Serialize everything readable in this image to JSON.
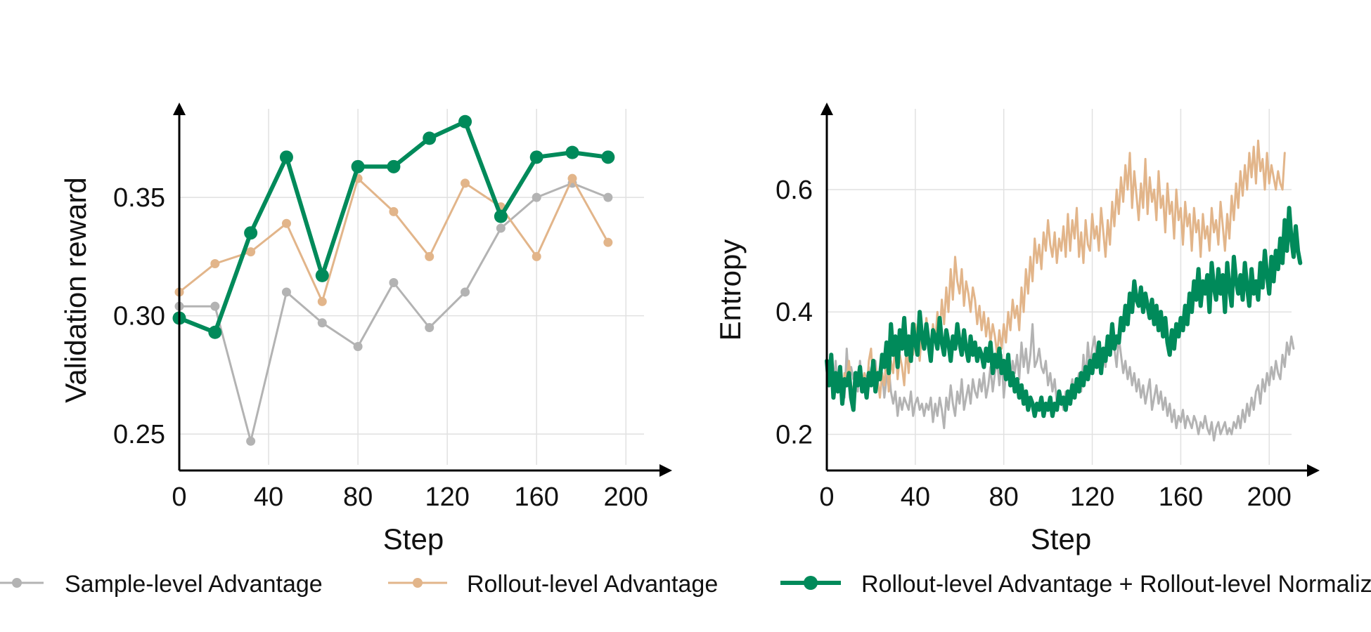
{
  "chart_data": [
    {
      "type": "line",
      "xlabel": "Step",
      "ylabel": "Validation reward",
      "xlim": [
        0,
        210
      ],
      "ylim": [
        0.237,
        0.3895
      ],
      "xticks": [
        0,
        40,
        80,
        120,
        160,
        200
      ],
      "yticks": [
        0.25,
        0.3,
        0.35
      ],
      "ytick_labels": [
        "0.25",
        "0.30",
        "0.35"
      ],
      "grid": true,
      "x": [
        0,
        16,
        32,
        48,
        64,
        80,
        96,
        112,
        128,
        144,
        160,
        176,
        192
      ],
      "series": [
        {
          "name": "Sample-level Advantage",
          "values": [
            0.304,
            0.304,
            0.247,
            0.31,
            0.297,
            0.287,
            0.314,
            0.295,
            0.31,
            0.337,
            0.35,
            0.356,
            0.35
          ]
        },
        {
          "name": "Rollout-level Advantage",
          "values": [
            0.31,
            0.322,
            0.327,
            0.339,
            0.306,
            0.358,
            0.344,
            0.325,
            0.356,
            0.346,
            0.325,
            0.358,
            0.331
          ]
        },
        {
          "name": "Rollout-level Advantage + Rollout-level Normalization",
          "values": [
            0.299,
            0.293,
            0.335,
            0.367,
            0.317,
            0.363,
            0.363,
            0.375,
            0.382,
            0.342,
            0.367,
            0.369,
            0.367
          ]
        }
      ]
    },
    {
      "type": "line",
      "xlabel": "Step",
      "ylabel": "Entropy",
      "xlim": [
        0,
        212
      ],
      "ylim": [
        0.15,
        0.74
      ],
      "xticks": [
        0,
        40,
        80,
        120,
        160,
        200
      ],
      "yticks": [
        0.2,
        0.4,
        0.6
      ],
      "ytick_labels": [
        "0.2",
        "0.4",
        "0.6"
      ],
      "grid": true,
      "x_start": 0,
      "x_step": 1,
      "series": [
        {
          "name": "Sample-level Advantage",
          "values": [
            0.31,
            0.29,
            0.3,
            0.28,
            0.32,
            0.27,
            0.3,
            0.29,
            0.26,
            0.34,
            0.28,
            0.31,
            0.29,
            0.3,
            0.27,
            0.32,
            0.28,
            0.3,
            0.29,
            0.31,
            0.28,
            0.3,
            0.32,
            0.28,
            0.31,
            0.3,
            0.26,
            0.29,
            0.31,
            0.27,
            0.25,
            0.27,
            0.23,
            0.26,
            0.24,
            0.26,
            0.25,
            0.24,
            0.27,
            0.23,
            0.25,
            0.26,
            0.24,
            0.25,
            0.23,
            0.25,
            0.24,
            0.26,
            0.22,
            0.25,
            0.23,
            0.26,
            0.24,
            0.21,
            0.26,
            0.24,
            0.28,
            0.25,
            0.23,
            0.27,
            0.25,
            0.29,
            0.24,
            0.26,
            0.28,
            0.25,
            0.29,
            0.27,
            0.26,
            0.29,
            0.27,
            0.3,
            0.26,
            0.28,
            0.31,
            0.27,
            0.3,
            0.32,
            0.28,
            0.33,
            0.26,
            0.3,
            0.31,
            0.28,
            0.32,
            0.3,
            0.33,
            0.29,
            0.35,
            0.31,
            0.34,
            0.3,
            0.33,
            0.38,
            0.31,
            0.32,
            0.34,
            0.31,
            0.3,
            0.32,
            0.28,
            0.3,
            0.27,
            0.29,
            0.25,
            0.27,
            0.26,
            0.24,
            0.27,
            0.25,
            0.27,
            0.29,
            0.26,
            0.28,
            0.3,
            0.27,
            0.33,
            0.29,
            0.35,
            0.31,
            0.34,
            0.36,
            0.32,
            0.35,
            0.3,
            0.33,
            0.31,
            0.36,
            0.33,
            0.38,
            0.34,
            0.31,
            0.36,
            0.33,
            0.3,
            0.32,
            0.29,
            0.31,
            0.28,
            0.3,
            0.27,
            0.29,
            0.26,
            0.28,
            0.25,
            0.27,
            0.29,
            0.24,
            0.26,
            0.28,
            0.25,
            0.27,
            0.24,
            0.26,
            0.23,
            0.25,
            0.22,
            0.24,
            0.21,
            0.23,
            0.22,
            0.24,
            0.21,
            0.23,
            0.22,
            0.21,
            0.23,
            0.22,
            0.2,
            0.22,
            0.21,
            0.23,
            0.21,
            0.2,
            0.22,
            0.19,
            0.21,
            0.22,
            0.2,
            0.21,
            0.22,
            0.2,
            0.21,
            0.2,
            0.22,
            0.21,
            0.23,
            0.21,
            0.24,
            0.22,
            0.25,
            0.23,
            0.26,
            0.24,
            0.27,
            0.28,
            0.25,
            0.29,
            0.27,
            0.3,
            0.28,
            0.31,
            0.29,
            0.32,
            0.3,
            0.29,
            0.33,
            0.31,
            0.35,
            0.33,
            0.36,
            0.34
          ]
        },
        {
          "name": "Rollout-level Advantage",
          "values": [
            0.31,
            0.29,
            0.32,
            0.27,
            0.3,
            0.28,
            0.31,
            0.26,
            0.3,
            0.29,
            0.32,
            0.28,
            0.27,
            0.3,
            0.29,
            0.31,
            0.28,
            0.3,
            0.27,
            0.32,
            0.34,
            0.28,
            0.31,
            0.29,
            0.26,
            0.3,
            0.28,
            0.33,
            0.27,
            0.32,
            0.3,
            0.35,
            0.29,
            0.33,
            0.31,
            0.28,
            0.34,
            0.3,
            0.36,
            0.33,
            0.38,
            0.35,
            0.32,
            0.37,
            0.34,
            0.39,
            0.36,
            0.33,
            0.38,
            0.35,
            0.4,
            0.36,
            0.42,
            0.38,
            0.44,
            0.4,
            0.47,
            0.42,
            0.49,
            0.45,
            0.43,
            0.47,
            0.41,
            0.45,
            0.43,
            0.4,
            0.44,
            0.42,
            0.38,
            0.41,
            0.37,
            0.4,
            0.36,
            0.39,
            0.35,
            0.38,
            0.36,
            0.33,
            0.37,
            0.34,
            0.38,
            0.35,
            0.4,
            0.37,
            0.42,
            0.39,
            0.41,
            0.37,
            0.44,
            0.4,
            0.47,
            0.43,
            0.49,
            0.45,
            0.52,
            0.48,
            0.51,
            0.47,
            0.53,
            0.5,
            0.55,
            0.51,
            0.49,
            0.53,
            0.48,
            0.52,
            0.5,
            0.54,
            0.49,
            0.56,
            0.5,
            0.55,
            0.52,
            0.57,
            0.49,
            0.53,
            0.48,
            0.55,
            0.51,
            0.5,
            0.56,
            0.52,
            0.54,
            0.5,
            0.57,
            0.53,
            0.49,
            0.55,
            0.51,
            0.58,
            0.54,
            0.6,
            0.56,
            0.62,
            0.58,
            0.64,
            0.6,
            0.66,
            0.57,
            0.63,
            0.59,
            0.55,
            0.61,
            0.57,
            0.65,
            0.56,
            0.62,
            0.58,
            0.6,
            0.55,
            0.63,
            0.57,
            0.59,
            0.53,
            0.61,
            0.56,
            0.58,
            0.52,
            0.6,
            0.55,
            0.57,
            0.51,
            0.58,
            0.54,
            0.56,
            0.5,
            0.57,
            0.53,
            0.55,
            0.49,
            0.56,
            0.52,
            0.54,
            0.5,
            0.57,
            0.53,
            0.55,
            0.51,
            0.58,
            0.54,
            0.5,
            0.56,
            0.52,
            0.59,
            0.55,
            0.61,
            0.57,
            0.63,
            0.59,
            0.64,
            0.6,
            0.66,
            0.62,
            0.67,
            0.61,
            0.68,
            0.63,
            0.65,
            0.6,
            0.66,
            0.61,
            0.64,
            0.62,
            0.6,
            0.63,
            0.61,
            0.6,
            0.66
          ]
        },
        {
          "name": "Rollout-level Advantage + Rollout-level Normalization",
          "values": [
            0.32,
            0.28,
            0.33,
            0.26,
            0.3,
            0.27,
            0.31,
            0.25,
            0.29,
            0.28,
            0.3,
            0.26,
            0.24,
            0.3,
            0.28,
            0.31,
            0.27,
            0.29,
            0.26,
            0.3,
            0.28,
            0.32,
            0.27,
            0.3,
            0.29,
            0.33,
            0.31,
            0.35,
            0.3,
            0.38,
            0.33,
            0.36,
            0.31,
            0.37,
            0.34,
            0.39,
            0.33,
            0.36,
            0.32,
            0.38,
            0.35,
            0.33,
            0.4,
            0.36,
            0.34,
            0.38,
            0.35,
            0.32,
            0.37,
            0.36,
            0.34,
            0.39,
            0.35,
            0.33,
            0.37,
            0.35,
            0.32,
            0.36,
            0.34,
            0.38,
            0.35,
            0.33,
            0.37,
            0.34,
            0.32,
            0.36,
            0.33,
            0.35,
            0.32,
            0.34,
            0.33,
            0.31,
            0.34,
            0.32,
            0.35,
            0.3,
            0.33,
            0.31,
            0.34,
            0.3,
            0.32,
            0.29,
            0.33,
            0.28,
            0.3,
            0.27,
            0.29,
            0.26,
            0.28,
            0.25,
            0.27,
            0.24,
            0.26,
            0.25,
            0.23,
            0.25,
            0.24,
            0.26,
            0.23,
            0.25,
            0.24,
            0.26,
            0.23,
            0.25,
            0.24,
            0.27,
            0.25,
            0.26,
            0.24,
            0.27,
            0.25,
            0.28,
            0.26,
            0.29,
            0.27,
            0.3,
            0.28,
            0.31,
            0.29,
            0.32,
            0.3,
            0.33,
            0.31,
            0.35,
            0.3,
            0.34,
            0.32,
            0.36,
            0.33,
            0.38,
            0.34,
            0.36,
            0.35,
            0.39,
            0.37,
            0.41,
            0.38,
            0.43,
            0.4,
            0.45,
            0.42,
            0.41,
            0.44,
            0.4,
            0.43,
            0.41,
            0.39,
            0.42,
            0.38,
            0.41,
            0.37,
            0.4,
            0.36,
            0.39,
            0.35,
            0.33,
            0.37,
            0.34,
            0.38,
            0.36,
            0.39,
            0.37,
            0.41,
            0.38,
            0.43,
            0.4,
            0.45,
            0.42,
            0.47,
            0.41,
            0.45,
            0.43,
            0.46,
            0.4,
            0.48,
            0.44,
            0.42,
            0.47,
            0.43,
            0.46,
            0.4,
            0.48,
            0.44,
            0.41,
            0.49,
            0.45,
            0.43,
            0.46,
            0.42,
            0.48,
            0.44,
            0.41,
            0.47,
            0.43,
            0.45,
            0.42,
            0.48,
            0.44,
            0.5,
            0.46,
            0.43,
            0.49,
            0.45,
            0.5,
            0.47,
            0.52,
            0.48,
            0.55,
            0.5,
            0.57,
            0.52,
            0.49,
            0.54,
            0.5,
            0.48
          ]
        }
      ]
    }
  ],
  "legend": {
    "placement": "bottom",
    "items": [
      {
        "label": "Sample-level Advantage",
        "color": "#b3b3b3"
      },
      {
        "label": "Rollout-level Advantage",
        "color": "#e2b58a"
      },
      {
        "label": "Rollout-level Advantage + Rollout-level Normalization",
        "color": "#008a5a"
      }
    ]
  }
}
